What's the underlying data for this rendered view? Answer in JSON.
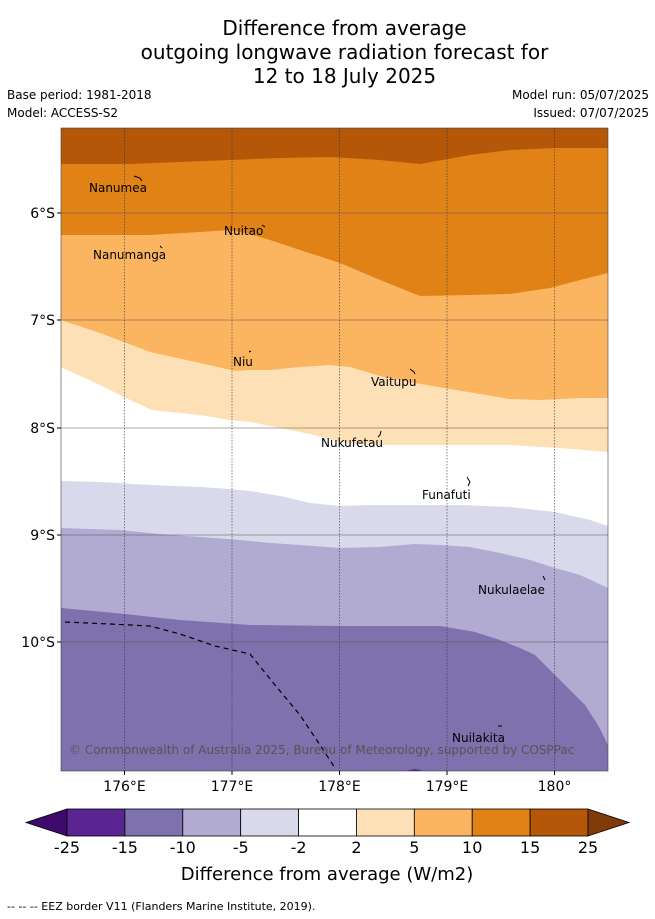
{
  "title": {
    "line1": "Difference from average",
    "line2": "outgoing longwave radiation forecast for",
    "line3": "12 to 18 July 2025"
  },
  "meta": {
    "base_period": "Base period: 1981-2018",
    "model": "Model: ACCESS-S2",
    "model_run": "Model run: 05/07/2025",
    "issued": "Issued: 07/07/2025"
  },
  "map": {
    "x_ticks": [
      "176°E",
      "177°E",
      "178°E",
      "179°E",
      "180°"
    ],
    "y_ticks": [
      "6°S",
      "7°S",
      "8°S",
      "9°S",
      "10°S"
    ],
    "islands": [
      "Nanumea",
      "Nuitao",
      "Nanumanga",
      "Niu",
      "Vaitupu",
      "Nukufetau",
      "Funafuti",
      "Nukulaelae",
      "Nuilakita"
    ],
    "copyright": "© Commonwealth of Australia 2025, Bureau of Meteorology, supported by COSPPac",
    "fill_colors": [
      "#b45709",
      "#e08216",
      "#fbb560",
      "#fde0b5",
      "#ffffff",
      "#d8d9ea",
      "#b1aad1",
      "#7f71ad"
    ]
  },
  "colorbar": {
    "ticks": [
      "-25",
      "-15",
      "-10",
      "-5",
      "-2",
      "2",
      "5",
      "10",
      "15",
      "25"
    ],
    "colors": [
      "#3f0a6e",
      "#5a2591",
      "#7f71ad",
      "#b1aad1",
      "#d8d9ea",
      "#ffffff",
      "#fde0b5",
      "#fbb560",
      "#e08216",
      "#b45709",
      "#7f3b08"
    ],
    "title": "Difference from average (W/m2)"
  },
  "footer": "-- -- -- EEZ border V11 (Flanders Marine Institute, 2019)."
}
